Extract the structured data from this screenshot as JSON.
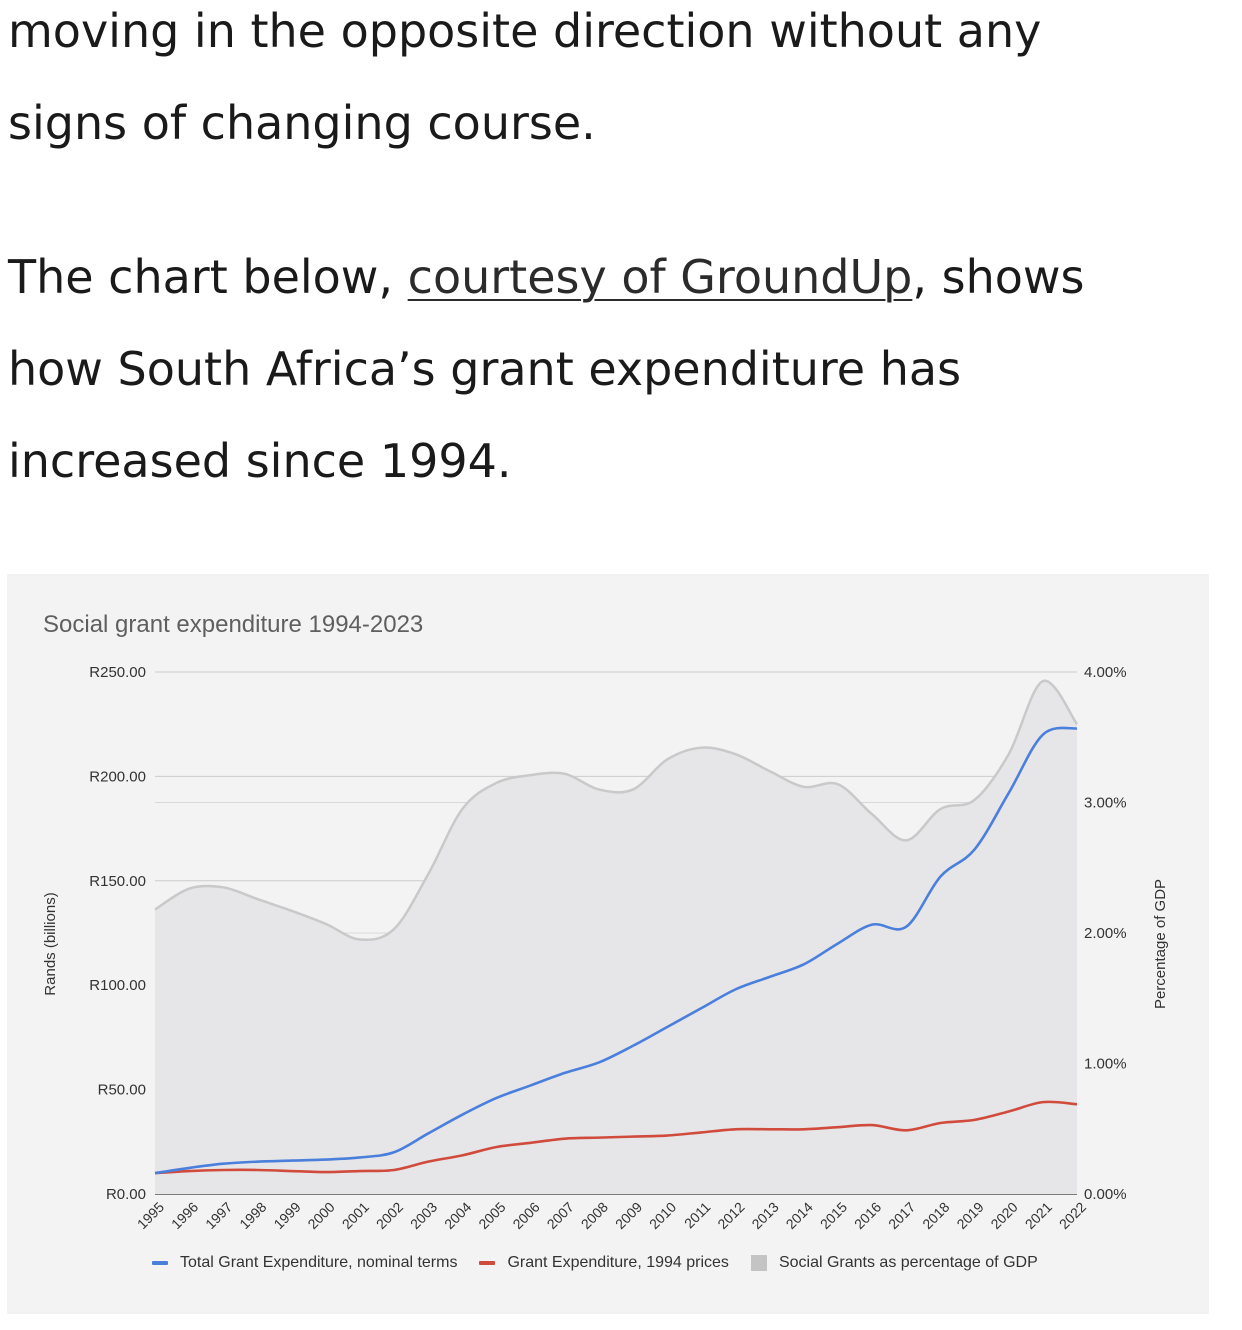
{
  "article": {
    "para1_line1": "moving in the opposite direction without any",
    "para1_line2": "signs of changing course.",
    "para2_before_link": "The chart below, ",
    "para2_link": "courtesy of GroundUp",
    "para2_after_link": ", shows",
    "para2_line2": "how South Africa’s grant expenditure has",
    "para2_line3": "increased since 1994."
  },
  "colors": {
    "nominal": "#4a7fdc",
    "real": "#d14b3d",
    "gdp_line": "#c9c9c9",
    "gdp_fill": "#e6e6e9",
    "grid": "#cccccc",
    "card_bg": "#f3f3f3"
  },
  "chart_data": {
    "type": "line",
    "title": "Social grant expenditure 1994-2023",
    "ylabel": "Rands (billions)",
    "y2label": "Percentage of GDP",
    "ylim": [
      0,
      250
    ],
    "y2lim": [
      0,
      4
    ],
    "yticks": [
      "R0.00",
      "R50.00",
      "R100.00",
      "R150.00",
      "R200.00",
      "R250.00"
    ],
    "y2ticks": [
      "0.00%",
      "1.00%",
      "2.00%",
      "3.00%",
      "4.00%"
    ],
    "grid": true,
    "legend_position": "bottom",
    "x": [
      "1995",
      "1996",
      "1997",
      "1998",
      "1999",
      "2000",
      "2001",
      "2002",
      "2003",
      "2004",
      "2005",
      "2006",
      "2007",
      "2008",
      "2009",
      "2010",
      "2011",
      "2012",
      "2013",
      "2014",
      "2015",
      "2016",
      "2017",
      "2018",
      "2019",
      "2020",
      "2021",
      "2022"
    ],
    "series": [
      {
        "name": "Total Grant Expenditure, nominal terms",
        "axis": "left",
        "type": "line",
        "values": [
          10,
          12.5,
          14.5,
          15.5,
          16,
          16.5,
          17.5,
          20,
          29,
          38,
          46,
          52,
          58,
          63,
          71,
          80,
          89,
          98,
          104,
          110,
          120,
          129,
          128,
          152,
          165,
          192,
          220,
          223
        ]
      },
      {
        "name": "Grant Expenditure, 1994 prices",
        "axis": "left",
        "type": "line",
        "values": [
          10,
          11,
          11.5,
          11.5,
          11,
          10.5,
          11,
          11.5,
          15.5,
          18.5,
          22.5,
          24.5,
          26.5,
          27,
          27.5,
          28,
          29.5,
          31,
          31,
          31,
          32,
          33,
          30.5,
          34,
          35.5,
          39.5,
          44,
          43
        ]
      },
      {
        "name": "Social Grants as percentage of GDP",
        "axis": "right",
        "type": "area",
        "values": [
          2.18,
          2.34,
          2.35,
          2.26,
          2.17,
          2.07,
          1.95,
          2.03,
          2.45,
          2.95,
          3.15,
          3.21,
          3.22,
          3.1,
          3.1,
          3.33,
          3.42,
          3.37,
          3.24,
          3.12,
          3.14,
          2.91,
          2.71,
          2.95,
          3.02,
          3.37,
          3.93,
          3.6
        ]
      }
    ]
  }
}
